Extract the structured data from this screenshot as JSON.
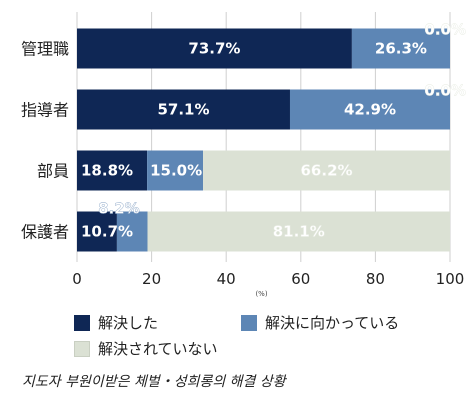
{
  "chart_data": {
    "type": "bar",
    "orientation": "horizontal",
    "stacked": true,
    "categories": [
      "管理職",
      "指導者",
      "部員",
      "保護者"
    ],
    "series": [
      {
        "name": "解決した",
        "values": [
          73.7,
          57.1,
          18.8,
          10.7
        ],
        "color": "#0f2755",
        "label_color": "#ffffff"
      },
      {
        "name": "解決に向かっている",
        "values": [
          26.3,
          42.9,
          15.0,
          8.2
        ],
        "color": "#5d86b5",
        "label_color": "#ffffff"
      },
      {
        "name": "解決されていない",
        "values": [
          0.0,
          0.0,
          66.2,
          81.1
        ],
        "color": "#dbe1d4",
        "label_color": "#ffffff"
      }
    ],
    "value_labels": [
      [
        "73.7%",
        "26.3%",
        "0.0%"
      ],
      [
        "57.1%",
        "42.9%",
        "0.0%"
      ],
      [
        "18.8%",
        "15.0%",
        "66.2%"
      ],
      [
        "10.7%",
        "8.2%",
        "81.1%"
      ]
    ],
    "xlim": [
      0,
      100
    ],
    "xticks": [
      0,
      20,
      40,
      60,
      80,
      100
    ],
    "xticklabels": [
      "0",
      "20",
      "40",
      "60",
      "80",
      "100"
    ],
    "xlabel": "(%)",
    "grid": "vertical",
    "legend_position": "bottom"
  },
  "caption": "지도자 부원이받은 체벌・성희롱의 해결 상황"
}
